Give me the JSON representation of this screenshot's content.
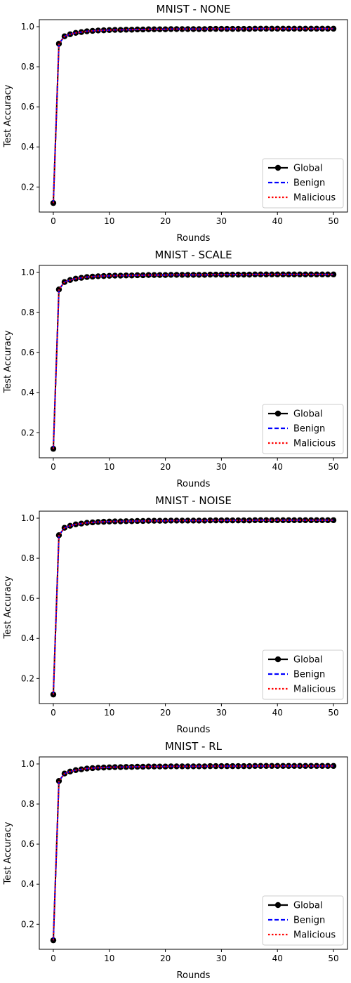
{
  "chart_data": [
    {
      "type": "line",
      "title": "MNIST - NONE",
      "xlabel": "Rounds",
      "ylabel": "Test Accuracy",
      "xlim": [
        -2.5,
        52.5
      ],
      "ylim": [
        0.075,
        1.035
      ],
      "xticks": [
        0,
        10,
        20,
        30,
        40,
        50
      ],
      "yticks": [
        0.2,
        0.4,
        0.6,
        0.8,
        1.0
      ],
      "x": [
        0,
        1,
        2,
        3,
        4,
        5,
        6,
        7,
        8,
        9,
        10,
        11,
        12,
        13,
        14,
        15,
        16,
        17,
        18,
        19,
        20,
        21,
        22,
        23,
        24,
        25,
        26,
        27,
        28,
        29,
        30,
        31,
        32,
        33,
        34,
        35,
        36,
        37,
        38,
        39,
        40,
        41,
        42,
        43,
        44,
        45,
        46,
        47,
        48,
        49,
        50
      ],
      "legend_position": "lower-right",
      "grid": false,
      "series": [
        {
          "name": "Global",
          "color": "#000000",
          "style": "solid-marker",
          "values": [
            0.12,
            0.915,
            0.952,
            0.962,
            0.969,
            0.973,
            0.977,
            0.979,
            0.981,
            0.982,
            0.983,
            0.984,
            0.984,
            0.985,
            0.985,
            0.986,
            0.986,
            0.987,
            0.987,
            0.987,
            0.987,
            0.988,
            0.988,
            0.988,
            0.988,
            0.988,
            0.988,
            0.988,
            0.989,
            0.989,
            0.989,
            0.989,
            0.989,
            0.989,
            0.989,
            0.989,
            0.99,
            0.99,
            0.99,
            0.99,
            0.99,
            0.99,
            0.99,
            0.99,
            0.99,
            0.99,
            0.99,
            0.99,
            0.99,
            0.99,
            0.99
          ]
        },
        {
          "name": "Benign",
          "color": "#0000ff",
          "style": "dashed",
          "values": [
            0.12,
            0.915,
            0.952,
            0.962,
            0.969,
            0.973,
            0.977,
            0.979,
            0.981,
            0.982,
            0.983,
            0.984,
            0.984,
            0.985,
            0.985,
            0.986,
            0.986,
            0.987,
            0.987,
            0.987,
            0.987,
            0.988,
            0.988,
            0.988,
            0.988,
            0.988,
            0.988,
            0.988,
            0.989,
            0.989,
            0.989,
            0.989,
            0.989,
            0.989,
            0.989,
            0.989,
            0.99,
            0.99,
            0.99,
            0.99,
            0.99,
            0.99,
            0.99,
            0.99,
            0.99,
            0.99,
            0.99,
            0.99,
            0.99,
            0.99,
            0.99
          ]
        },
        {
          "name": "Malicious",
          "color": "#ff0000",
          "style": "dotted",
          "values": [
            0.12,
            0.915,
            0.952,
            0.962,
            0.969,
            0.973,
            0.977,
            0.979,
            0.981,
            0.982,
            0.983,
            0.984,
            0.984,
            0.985,
            0.985,
            0.986,
            0.986,
            0.987,
            0.987,
            0.987,
            0.987,
            0.988,
            0.988,
            0.988,
            0.988,
            0.988,
            0.988,
            0.988,
            0.989,
            0.989,
            0.989,
            0.989,
            0.989,
            0.989,
            0.989,
            0.989,
            0.99,
            0.99,
            0.99,
            0.99,
            0.99,
            0.99,
            0.99,
            0.99,
            0.99,
            0.99,
            0.99,
            0.99,
            0.99,
            0.99,
            0.99
          ]
        }
      ]
    },
    {
      "type": "line",
      "title": "MNIST - SCALE",
      "xlabel": "Rounds",
      "ylabel": "Test Accuracy",
      "xlim": [
        -2.5,
        52.5
      ],
      "ylim": [
        0.075,
        1.035
      ],
      "xticks": [
        0,
        10,
        20,
        30,
        40,
        50
      ],
      "yticks": [
        0.2,
        0.4,
        0.6,
        0.8,
        1.0
      ],
      "x": [
        0,
        1,
        2,
        3,
        4,
        5,
        6,
        7,
        8,
        9,
        10,
        11,
        12,
        13,
        14,
        15,
        16,
        17,
        18,
        19,
        20,
        21,
        22,
        23,
        24,
        25,
        26,
        27,
        28,
        29,
        30,
        31,
        32,
        33,
        34,
        35,
        36,
        37,
        38,
        39,
        40,
        41,
        42,
        43,
        44,
        45,
        46,
        47,
        48,
        49,
        50
      ],
      "legend_position": "lower-right",
      "grid": false,
      "series": [
        {
          "name": "Global",
          "color": "#000000",
          "style": "solid-marker",
          "values": [
            0.12,
            0.915,
            0.952,
            0.962,
            0.969,
            0.973,
            0.977,
            0.979,
            0.981,
            0.982,
            0.983,
            0.984,
            0.984,
            0.985,
            0.985,
            0.986,
            0.986,
            0.987,
            0.987,
            0.987,
            0.987,
            0.988,
            0.988,
            0.988,
            0.988,
            0.988,
            0.988,
            0.988,
            0.989,
            0.989,
            0.989,
            0.989,
            0.989,
            0.989,
            0.989,
            0.989,
            0.99,
            0.99,
            0.99,
            0.99,
            0.99,
            0.99,
            0.99,
            0.99,
            0.99,
            0.99,
            0.99,
            0.99,
            0.99,
            0.99,
            0.99
          ]
        },
        {
          "name": "Benign",
          "color": "#0000ff",
          "style": "dashed",
          "values": [
            0.12,
            0.915,
            0.952,
            0.962,
            0.969,
            0.973,
            0.977,
            0.979,
            0.981,
            0.982,
            0.983,
            0.984,
            0.984,
            0.985,
            0.985,
            0.986,
            0.986,
            0.987,
            0.987,
            0.987,
            0.987,
            0.988,
            0.988,
            0.988,
            0.988,
            0.988,
            0.988,
            0.988,
            0.989,
            0.989,
            0.989,
            0.989,
            0.989,
            0.989,
            0.989,
            0.989,
            0.99,
            0.99,
            0.99,
            0.99,
            0.99,
            0.99,
            0.99,
            0.99,
            0.99,
            0.99,
            0.99,
            0.99,
            0.99,
            0.99,
            0.99
          ]
        },
        {
          "name": "Malicious",
          "color": "#ff0000",
          "style": "dotted",
          "values": [
            0.12,
            0.915,
            0.952,
            0.962,
            0.969,
            0.973,
            0.977,
            0.979,
            0.981,
            0.982,
            0.983,
            0.984,
            0.984,
            0.985,
            0.985,
            0.986,
            0.986,
            0.987,
            0.987,
            0.987,
            0.987,
            0.988,
            0.988,
            0.988,
            0.988,
            0.988,
            0.988,
            0.988,
            0.989,
            0.989,
            0.989,
            0.989,
            0.989,
            0.989,
            0.989,
            0.989,
            0.99,
            0.99,
            0.99,
            0.99,
            0.99,
            0.99,
            0.99,
            0.99,
            0.99,
            0.99,
            0.99,
            0.99,
            0.99,
            0.99,
            0.99
          ]
        }
      ]
    },
    {
      "type": "line",
      "title": "MNIST - NOISE",
      "xlabel": "Rounds",
      "ylabel": "Test Accuracy",
      "xlim": [
        -2.5,
        52.5
      ],
      "ylim": [
        0.075,
        1.035
      ],
      "xticks": [
        0,
        10,
        20,
        30,
        40,
        50
      ],
      "yticks": [
        0.2,
        0.4,
        0.6,
        0.8,
        1.0
      ],
      "x": [
        0,
        1,
        2,
        3,
        4,
        5,
        6,
        7,
        8,
        9,
        10,
        11,
        12,
        13,
        14,
        15,
        16,
        17,
        18,
        19,
        20,
        21,
        22,
        23,
        24,
        25,
        26,
        27,
        28,
        29,
        30,
        31,
        32,
        33,
        34,
        35,
        36,
        37,
        38,
        39,
        40,
        41,
        42,
        43,
        44,
        45,
        46,
        47,
        48,
        49,
        50
      ],
      "legend_position": "lower-right",
      "grid": false,
      "series": [
        {
          "name": "Global",
          "color": "#000000",
          "style": "solid-marker",
          "values": [
            0.12,
            0.915,
            0.952,
            0.962,
            0.969,
            0.973,
            0.977,
            0.979,
            0.981,
            0.982,
            0.983,
            0.984,
            0.984,
            0.985,
            0.985,
            0.986,
            0.986,
            0.987,
            0.987,
            0.987,
            0.987,
            0.988,
            0.988,
            0.988,
            0.988,
            0.988,
            0.988,
            0.988,
            0.989,
            0.989,
            0.989,
            0.989,
            0.989,
            0.989,
            0.989,
            0.989,
            0.99,
            0.99,
            0.99,
            0.99,
            0.99,
            0.99,
            0.99,
            0.99,
            0.99,
            0.99,
            0.99,
            0.99,
            0.99,
            0.99,
            0.99
          ]
        },
        {
          "name": "Benign",
          "color": "#0000ff",
          "style": "dashed",
          "values": [
            0.12,
            0.915,
            0.952,
            0.962,
            0.969,
            0.973,
            0.977,
            0.979,
            0.981,
            0.982,
            0.983,
            0.984,
            0.984,
            0.985,
            0.985,
            0.986,
            0.986,
            0.987,
            0.987,
            0.987,
            0.987,
            0.988,
            0.988,
            0.988,
            0.988,
            0.988,
            0.988,
            0.988,
            0.989,
            0.989,
            0.989,
            0.989,
            0.989,
            0.989,
            0.989,
            0.989,
            0.99,
            0.99,
            0.99,
            0.99,
            0.99,
            0.99,
            0.99,
            0.99,
            0.99,
            0.99,
            0.99,
            0.99,
            0.99,
            0.99,
            0.99
          ]
        },
        {
          "name": "Malicious",
          "color": "#ff0000",
          "style": "dotted",
          "values": [
            0.12,
            0.915,
            0.952,
            0.962,
            0.969,
            0.973,
            0.977,
            0.979,
            0.981,
            0.982,
            0.983,
            0.984,
            0.984,
            0.985,
            0.985,
            0.986,
            0.986,
            0.987,
            0.987,
            0.987,
            0.987,
            0.988,
            0.988,
            0.988,
            0.988,
            0.988,
            0.988,
            0.988,
            0.989,
            0.989,
            0.989,
            0.989,
            0.989,
            0.989,
            0.989,
            0.989,
            0.99,
            0.99,
            0.99,
            0.99,
            0.99,
            0.99,
            0.99,
            0.99,
            0.99,
            0.99,
            0.99,
            0.99,
            0.99,
            0.99,
            0.99
          ]
        }
      ]
    },
    {
      "type": "line",
      "title": "MNIST - RL",
      "xlabel": "Rounds",
      "ylabel": "Test Accuracy",
      "xlim": [
        -2.5,
        52.5
      ],
      "ylim": [
        0.075,
        1.035
      ],
      "xticks": [
        0,
        10,
        20,
        30,
        40,
        50
      ],
      "yticks": [
        0.2,
        0.4,
        0.6,
        0.8,
        1.0
      ],
      "x": [
        0,
        1,
        2,
        3,
        4,
        5,
        6,
        7,
        8,
        9,
        10,
        11,
        12,
        13,
        14,
        15,
        16,
        17,
        18,
        19,
        20,
        21,
        22,
        23,
        24,
        25,
        26,
        27,
        28,
        29,
        30,
        31,
        32,
        33,
        34,
        35,
        36,
        37,
        38,
        39,
        40,
        41,
        42,
        43,
        44,
        45,
        46,
        47,
        48,
        49,
        50
      ],
      "legend_position": "lower-right",
      "grid": false,
      "series": [
        {
          "name": "Global",
          "color": "#000000",
          "style": "solid-marker",
          "values": [
            0.12,
            0.915,
            0.952,
            0.962,
            0.969,
            0.973,
            0.977,
            0.979,
            0.981,
            0.982,
            0.983,
            0.984,
            0.984,
            0.985,
            0.985,
            0.986,
            0.986,
            0.987,
            0.987,
            0.987,
            0.987,
            0.988,
            0.988,
            0.988,
            0.988,
            0.988,
            0.988,
            0.988,
            0.989,
            0.989,
            0.989,
            0.989,
            0.989,
            0.989,
            0.989,
            0.989,
            0.99,
            0.99,
            0.99,
            0.99,
            0.99,
            0.99,
            0.99,
            0.99,
            0.99,
            0.99,
            0.99,
            0.99,
            0.99,
            0.99,
            0.99
          ]
        },
        {
          "name": "Benign",
          "color": "#0000ff",
          "style": "dashed",
          "values": [
            0.12,
            0.915,
            0.952,
            0.962,
            0.969,
            0.973,
            0.977,
            0.979,
            0.981,
            0.982,
            0.983,
            0.984,
            0.984,
            0.985,
            0.985,
            0.986,
            0.986,
            0.987,
            0.987,
            0.987,
            0.987,
            0.988,
            0.988,
            0.988,
            0.988,
            0.988,
            0.988,
            0.988,
            0.989,
            0.989,
            0.989,
            0.989,
            0.989,
            0.989,
            0.989,
            0.989,
            0.99,
            0.99,
            0.99,
            0.99,
            0.99,
            0.99,
            0.99,
            0.99,
            0.99,
            0.99,
            0.99,
            0.99,
            0.99,
            0.99,
            0.99
          ]
        },
        {
          "name": "Malicious",
          "color": "#ff0000",
          "style": "dotted",
          "values": [
            0.12,
            0.915,
            0.952,
            0.962,
            0.969,
            0.973,
            0.977,
            0.979,
            0.981,
            0.982,
            0.983,
            0.984,
            0.984,
            0.985,
            0.985,
            0.986,
            0.986,
            0.987,
            0.987,
            0.987,
            0.987,
            0.988,
            0.988,
            0.988,
            0.988,
            0.988,
            0.988,
            0.988,
            0.989,
            0.989,
            0.989,
            0.989,
            0.989,
            0.989,
            0.989,
            0.989,
            0.99,
            0.99,
            0.99,
            0.99,
            0.99,
            0.99,
            0.99,
            0.99,
            0.99,
            0.99,
            0.99,
            0.99,
            0.99,
            0.99,
            0.99
          ]
        }
      ]
    }
  ]
}
